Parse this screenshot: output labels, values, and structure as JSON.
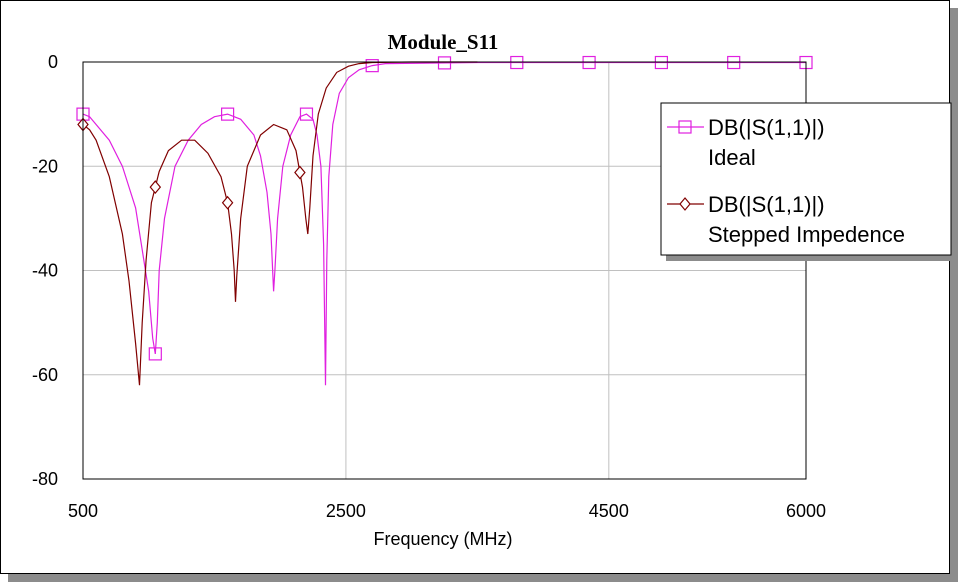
{
  "chart_data": {
    "type": "line",
    "title": "Module_S11",
    "xlabel": "Frequency (MHz)",
    "ylabel": "",
    "xlim": [
      500,
      6000
    ],
    "ylim": [
      -80,
      0
    ],
    "x_ticks": [
      500,
      2500,
      4500,
      6000
    ],
    "y_ticks": [
      0,
      -20,
      -40,
      -60,
      -80
    ],
    "x_tick_labels": [
      "500",
      "2500",
      "4500",
      "6000"
    ],
    "y_tick_labels": [
      "0",
      "-20",
      "-40",
      "-60",
      "-80"
    ],
    "grid": true,
    "legend_position": "right",
    "series": [
      {
        "name": "DB(|S(1,1)|)",
        "name_line2": "Ideal",
        "color": "#e020e0",
        "marker": "square",
        "points": [
          [
            500,
            -10
          ],
          [
            550,
            -10.5
          ],
          [
            600,
            -12
          ],
          [
            700,
            -15
          ],
          [
            800,
            -20
          ],
          [
            900,
            -28
          ],
          [
            950,
            -36
          ],
          [
            1000,
            -44
          ],
          [
            1030,
            -53
          ],
          [
            1050,
            -56
          ],
          [
            1065,
            -50
          ],
          [
            1080,
            -40
          ],
          [
            1120,
            -30
          ],
          [
            1200,
            -20
          ],
          [
            1300,
            -15
          ],
          [
            1400,
            -12
          ],
          [
            1500,
            -10.5
          ],
          [
            1600,
            -10
          ],
          [
            1700,
            -11
          ],
          [
            1800,
            -14
          ],
          [
            1850,
            -18
          ],
          [
            1900,
            -25
          ],
          [
            1930,
            -33
          ],
          [
            1950,
            -44
          ],
          [
            1960,
            -40
          ],
          [
            1980,
            -30
          ],
          [
            2020,
            -20
          ],
          [
            2080,
            -14
          ],
          [
            2150,
            -10.5
          ],
          [
            2200,
            -10
          ],
          [
            2250,
            -11
          ],
          [
            2280,
            -14
          ],
          [
            2310,
            -20
          ],
          [
            2330,
            -35
          ],
          [
            2345,
            -62
          ],
          [
            2355,
            -38
          ],
          [
            2370,
            -22
          ],
          [
            2400,
            -12
          ],
          [
            2450,
            -6
          ],
          [
            2520,
            -3
          ],
          [
            2600,
            -1.5
          ],
          [
            2700,
            -0.7
          ],
          [
            2800,
            -0.3
          ],
          [
            3500,
            -0.1
          ],
          [
            4000,
            -0.1
          ],
          [
            5000,
            -0.1
          ],
          [
            6000,
            -0.1
          ]
        ],
        "marker_x": [
          500,
          1050,
          1600,
          2200,
          2700,
          3250,
          3800,
          4350,
          4900,
          5450,
          6000
        ]
      },
      {
        "name": "DB(|S(1,1)|)",
        "name_line2": "Stepped Impedence",
        "color": "#800000",
        "marker": "diamond",
        "points": [
          [
            500,
            -12
          ],
          [
            550,
            -13
          ],
          [
            600,
            -15
          ],
          [
            700,
            -22
          ],
          [
            800,
            -33
          ],
          [
            850,
            -42
          ],
          [
            900,
            -54
          ],
          [
            930,
            -62
          ],
          [
            950,
            -50
          ],
          [
            980,
            -38
          ],
          [
            1020,
            -27
          ],
          [
            1080,
            -21
          ],
          [
            1150,
            -17
          ],
          [
            1250,
            -15
          ],
          [
            1350,
            -15
          ],
          [
            1450,
            -17.5
          ],
          [
            1550,
            -22
          ],
          [
            1600,
            -27
          ],
          [
            1630,
            -33
          ],
          [
            1650,
            -40
          ],
          [
            1660,
            -46
          ],
          [
            1670,
            -41
          ],
          [
            1700,
            -30
          ],
          [
            1750,
            -20
          ],
          [
            1850,
            -14
          ],
          [
            1950,
            -12
          ],
          [
            2050,
            -13
          ],
          [
            2120,
            -17
          ],
          [
            2170,
            -24
          ],
          [
            2195,
            -30
          ],
          [
            2210,
            -33
          ],
          [
            2225,
            -28
          ],
          [
            2250,
            -18
          ],
          [
            2290,
            -10
          ],
          [
            2350,
            -5
          ],
          [
            2430,
            -2
          ],
          [
            2520,
            -0.8
          ],
          [
            2600,
            -0.3
          ],
          [
            2700,
            -0.1
          ],
          [
            3000,
            0
          ],
          [
            3500,
            0
          ]
        ],
        "marker_x": [
          500,
          1050,
          1600,
          2150
        ]
      }
    ]
  }
}
